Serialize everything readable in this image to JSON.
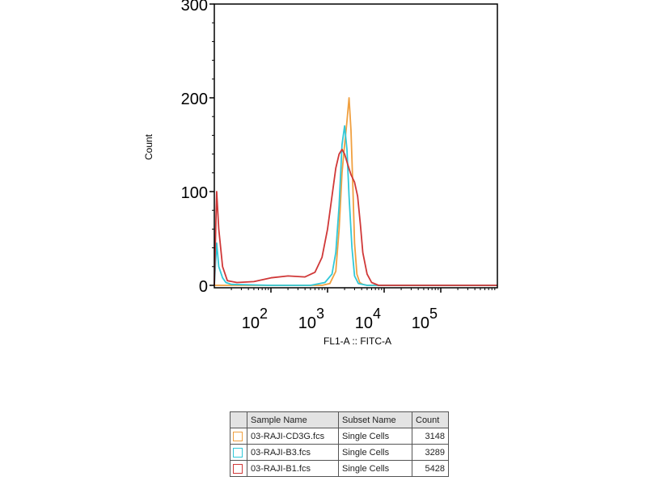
{
  "chart_data": {
    "type": "line",
    "title": "",
    "ylabel": "Count",
    "xlabel": "FL1-A :: FITC-A",
    "xscale": "log",
    "xlim": [
      10,
      1000000
    ],
    "ylim": [
      0,
      300
    ],
    "y_ticks": [
      {
        "value": 0,
        "label": "0"
      },
      {
        "value": 100,
        "label": "100"
      },
      {
        "value": 200,
        "label": "200"
      },
      {
        "value": 300,
        "label": "300"
      }
    ],
    "x_ticks": [
      {
        "value": 100,
        "base": "10",
        "exp": "2"
      },
      {
        "value": 1000,
        "base": "10",
        "exp": "3"
      },
      {
        "value": 10000,
        "base": "10",
        "exp": "4"
      },
      {
        "value": 100000,
        "base": "10",
        "exp": "5"
      }
    ],
    "grid": false,
    "legend_position": "bottom",
    "series": [
      {
        "name": "03-RAJI-CD3G.fcs",
        "color": "#f0a040",
        "x": [
          10,
          800,
          1100,
          1400,
          1600,
          1800,
          2000,
          2200,
          2400,
          2600,
          2800,
          3000,
          3300,
          3700,
          4200,
          5000,
          1000000
        ],
        "y": [
          0,
          0,
          2,
          15,
          60,
          120,
          150,
          175,
          200,
          165,
          105,
          45,
          12,
          3,
          1,
          0,
          0
        ]
      },
      {
        "name": "03-RAJI-B3.fcs",
        "color": "#30c8d8",
        "x": [
          10,
          11,
          12,
          14,
          16,
          20,
          100,
          500,
          900,
          1200,
          1400,
          1600,
          1800,
          2000,
          2200,
          2400,
          2700,
          3000,
          3500,
          5000,
          1000000
        ],
        "y": [
          0,
          45,
          20,
          8,
          3,
          1,
          0,
          0,
          3,
          12,
          35,
          85,
          150,
          170,
          145,
          95,
          40,
          10,
          2,
          0,
          0
        ]
      },
      {
        "name": "03-RAJI-B1.fcs",
        "color": "#d03838",
        "x": [
          10,
          11,
          12,
          14,
          17,
          25,
          50,
          100,
          200,
          400,
          600,
          800,
          1000,
          1200,
          1400,
          1600,
          1800,
          2000,
          2300,
          2600,
          3000,
          3400,
          3800,
          4200,
          5000,
          6000,
          8000,
          1000000
        ],
        "y": [
          0,
          100,
          60,
          20,
          5,
          3,
          4,
          8,
          10,
          9,
          14,
          30,
          60,
          95,
          125,
          140,
          145,
          140,
          128,
          118,
          110,
          95,
          65,
          35,
          12,
          3,
          0,
          0
        ]
      }
    ],
    "table": {
      "columns": [
        "Sample Name",
        "Subset Name",
        "Count"
      ],
      "rows": [
        {
          "sample": "03-RAJI-CD3G.fcs",
          "subset": "Single Cells",
          "count": "3148",
          "color": "#f0a040"
        },
        {
          "sample": "03-RAJI-B3.fcs",
          "subset": "Single Cells",
          "count": "3289",
          "color": "#30c8d8"
        },
        {
          "sample": "03-RAJI-B1.fcs",
          "subset": "Single Cells",
          "count": "5428",
          "color": "#d03838"
        }
      ]
    }
  }
}
